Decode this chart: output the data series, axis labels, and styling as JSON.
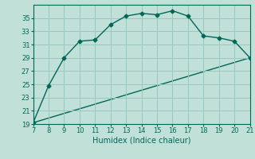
{
  "title": "",
  "xlabel": "Humidex (Indice chaleur)",
  "ylabel": "",
  "bg_color": "#c0e0d8",
  "line_color": "#006858",
  "marker": "D",
  "markersize": 2.5,
  "linewidth": 1.0,
  "xlim": [
    7,
    21
  ],
  "ylim": [
    19,
    37
  ],
  "xticks": [
    7,
    8,
    9,
    10,
    11,
    12,
    13,
    14,
    15,
    16,
    17,
    18,
    19,
    20,
    21
  ],
  "yticks": [
    19,
    21,
    23,
    25,
    27,
    29,
    31,
    33,
    35
  ],
  "curve1_x": [
    7,
    8,
    9,
    10,
    11,
    12,
    13,
    14,
    15,
    16,
    17,
    18,
    19,
    20,
    21
  ],
  "curve1_y": [
    19.2,
    24.8,
    29.0,
    31.5,
    31.7,
    34.0,
    35.3,
    35.7,
    35.5,
    36.1,
    35.3,
    32.3,
    32.0,
    31.5,
    29.0
  ],
  "curve2_x": [
    7,
    21
  ],
  "curve2_y": [
    19.2,
    29.0
  ],
  "grid_color": "#98c8be",
  "tick_fontsize": 6,
  "label_fontsize": 7
}
